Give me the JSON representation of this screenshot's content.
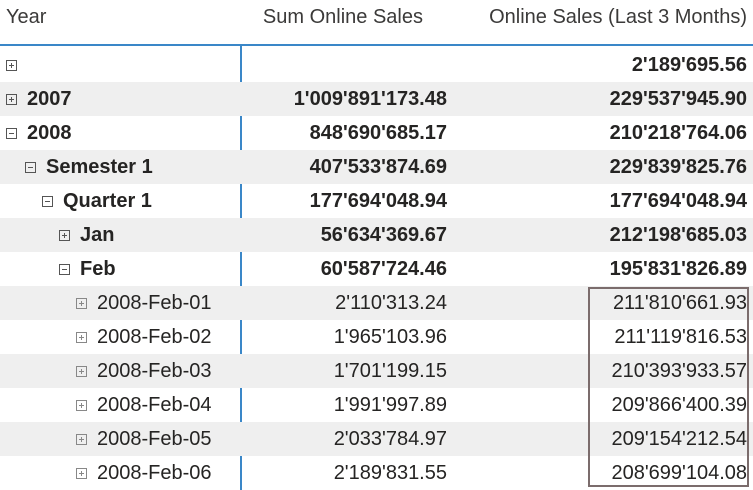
{
  "headers": {
    "year": "Year",
    "sum_online_sales": "Sum Online Sales",
    "online_sales_last_3_months": "Online Sales (Last 3 Months)"
  },
  "rows": [
    {
      "label": "",
      "sum": "",
      "l3m": "2'189'695.56",
      "toggle": "plus",
      "level": 0,
      "bold": true,
      "shade": false
    },
    {
      "label": "2007",
      "sum": "1'009'891'173.48",
      "l3m": "229'537'945.90",
      "toggle": "plus",
      "level": 0,
      "bold": true,
      "shade": true
    },
    {
      "label": "2008",
      "sum": "848'690'685.17",
      "l3m": "210'218'764.06",
      "toggle": "minus",
      "level": 0,
      "bold": true,
      "shade": false
    },
    {
      "label": "Semester 1",
      "sum": "407'533'874.69",
      "l3m": "229'839'825.76",
      "toggle": "minus",
      "level": 1,
      "bold": true,
      "shade": true
    },
    {
      "label": "Quarter 1",
      "sum": "177'694'048.94",
      "l3m": "177'694'048.94",
      "toggle": "minus",
      "level": 2,
      "bold": true,
      "shade": false
    },
    {
      "label": "Jan",
      "sum": "56'634'369.67",
      "l3m": "212'198'685.03",
      "toggle": "plus",
      "level": 3,
      "bold": true,
      "shade": true
    },
    {
      "label": "Feb",
      "sum": "60'587'724.46",
      "l3m": "195'831'826.89",
      "toggle": "minus",
      "level": 3,
      "bold": true,
      "shade": false
    },
    {
      "label": "2008-Feb-01",
      "sum": "2'110'313.24",
      "l3m": "211'810'661.93",
      "toggle": "plus",
      "level": 4,
      "bold": false,
      "shade": true
    },
    {
      "label": "2008-Feb-02",
      "sum": "1'965'103.96",
      "l3m": "211'119'816.53",
      "toggle": "plus",
      "level": 4,
      "bold": false,
      "shade": false
    },
    {
      "label": "2008-Feb-03",
      "sum": "1'701'199.15",
      "l3m": "210'393'933.57",
      "toggle": "plus",
      "level": 4,
      "bold": false,
      "shade": true
    },
    {
      "label": "2008-Feb-04",
      "sum": "1'991'997.89",
      "l3m": "209'866'400.39",
      "toggle": "plus",
      "level": 4,
      "bold": false,
      "shade": false
    },
    {
      "label": "2008-Feb-05",
      "sum": "2'033'784.97",
      "l3m": "209'154'212.54",
      "toggle": "plus",
      "level": 4,
      "bold": false,
      "shade": true
    },
    {
      "label": "2008-Feb-06",
      "sum": "2'189'831.55",
      "l3m": "208'699'104.08",
      "toggle": "plus",
      "level": 4,
      "bold": false,
      "shade": false
    }
  ],
  "colors": {
    "accent_line": "#3a87c8",
    "row_shade": "#efefef",
    "highlight_border": "#7b6c6c",
    "text": "#252423"
  },
  "icons": {
    "expand": "expand-plus-icon",
    "collapse": "collapse-minus-icon"
  }
}
